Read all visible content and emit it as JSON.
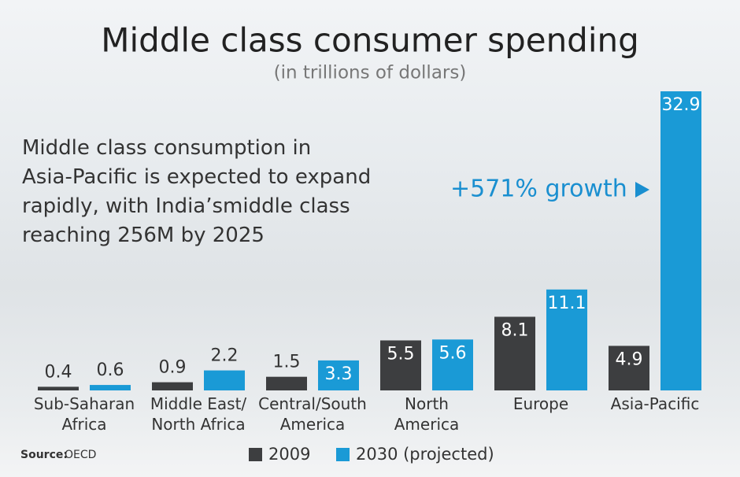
{
  "chart_data": {
    "type": "bar",
    "title": "Middle class consumer spending",
    "subtitle": "(in trillions of dollars)",
    "annotation": "Middle class consumption in\nAsia-Pacific is expected to expand\nrapidly, with India’smiddle class\nreaching 256M by 2025",
    "growth_annotation": "+571% growth",
    "categories": [
      "Sub-Saharan\nAfrica",
      "Middle East/\nNorth Africa",
      "Central/South\nAmerica",
      "North\nAmerica",
      "Europe",
      "Asia-Pacific"
    ],
    "series": [
      {
        "name": "2009",
        "color": "#3d3e40",
        "values": [
          0.4,
          0.9,
          1.5,
          5.5,
          8.1,
          4.9
        ]
      },
      {
        "name": "2030 (projected)",
        "color": "#1a9ad6",
        "values": [
          0.6,
          2.2,
          3.3,
          5.6,
          11.1,
          32.9
        ]
      }
    ],
    "source_label": "Source:",
    "source": "OECD"
  }
}
